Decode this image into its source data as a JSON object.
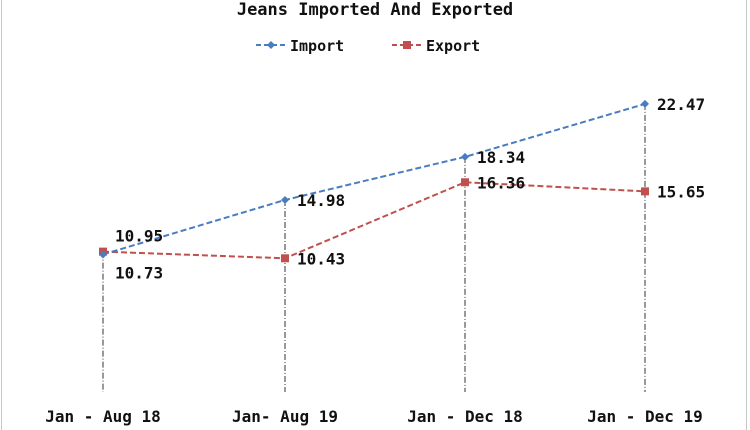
{
  "chart_data": {
    "type": "line",
    "title": "Jeans Imported And Exported",
    "categories": [
      "Jan - Aug 18",
      "Jan- Aug 19",
      "Jan - Dec 18",
      "Jan - Dec 19"
    ],
    "series": [
      {
        "name": "Import",
        "values": [
          10.73,
          14.98,
          18.34,
          22.47
        ],
        "color": "#4a7cc0",
        "marker": "diamond"
      },
      {
        "name": "Export",
        "values": [
          10.95,
          10.43,
          16.36,
          15.65
        ],
        "color": "#c0504d",
        "marker": "square"
      }
    ],
    "ylim": [
      0,
      24
    ],
    "grid": false,
    "drop_lines": true,
    "legend": "top",
    "xlabel": "",
    "ylabel": ""
  }
}
